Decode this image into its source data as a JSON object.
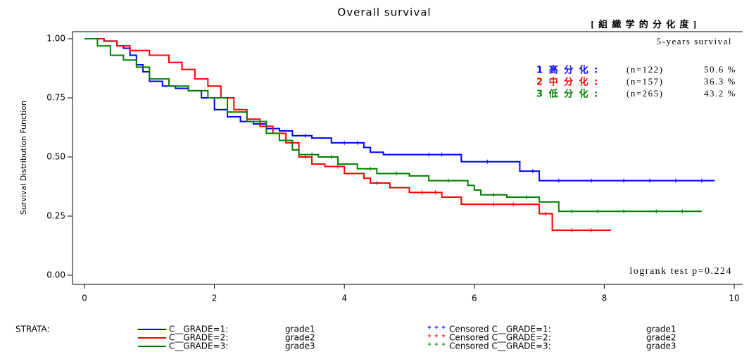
{
  "chart_data": {
    "type": "step",
    "title": "Overall survival",
    "ylabel": "Survival Distribution Function",
    "header": "[ 組 織 学 的 分 化 度 ]",
    "subheader": "5-years survival",
    "annotation": "logrank test p=0.224",
    "legend_title": "STRATA:",
    "xlim": [
      0,
      10
    ],
    "xticks": [
      0,
      2,
      4,
      6,
      8,
      10
    ],
    "ylim": [
      0,
      1
    ],
    "yticks": [
      {
        "value": 0,
        "label": "0.00"
      },
      {
        "value": 0.25,
        "label": "0.25"
      },
      {
        "value": 0.5,
        "label": "0.50"
      },
      {
        "value": 0.75,
        "label": "0.75"
      },
      {
        "value": 1,
        "label": "1.00"
      }
    ],
    "series": [
      {
        "name": "C__GRADE=1:",
        "group": "grade1",
        "censored_name": "Censored C__GRADE=1:",
        "color": "#0000ff",
        "label": "1 高 分 化 :",
        "n": "(n=122)",
        "rate": "50.6 %",
        "x": [
          0,
          0.3,
          0.5,
          0.6,
          0.7,
          0.8,
          0.9,
          1.0,
          1.2,
          1.4,
          1.6,
          1.8,
          2.0,
          2.2,
          2.4,
          2.6,
          2.8,
          3.0,
          3.2,
          3.5,
          3.8,
          4.3,
          4.4,
          4.6,
          5.8,
          6.7,
          7.0,
          9.7
        ],
        "y": [
          1,
          0.99,
          0.97,
          0.96,
          0.93,
          0.89,
          0.86,
          0.82,
          0.8,
          0.79,
          0.78,
          0.75,
          0.7,
          0.67,
          0.65,
          0.64,
          0.62,
          0.61,
          0.59,
          0.58,
          0.56,
          0.54,
          0.52,
          0.51,
          0.48,
          0.44,
          0.4,
          0.4
        ],
        "censored": [
          2.7,
          3.4,
          4.0,
          4.2,
          5.3,
          5.5,
          6.2,
          6.9,
          7.3,
          7.8,
          8.3,
          8.7,
          9.1,
          9.5
        ]
      },
      {
        "name": "C__GRADE=2:",
        "group": "grade2",
        "censored_name": "Censored C__GRADE=2:",
        "color": "#ff0000",
        "label": "2 中 分 化 :",
        "n": "(n=157)",
        "rate": "36.3 %",
        "x": [
          0,
          0.3,
          0.5,
          0.7,
          1.0,
          1.3,
          1.5,
          1.7,
          1.9,
          2.1,
          2.3,
          2.5,
          2.7,
          2.9,
          3.1,
          3.3,
          3.5,
          3.7,
          4.0,
          4.3,
          4.4,
          4.7,
          5.0,
          5.5,
          5.8,
          7.0,
          7.2,
          8.1
        ],
        "y": [
          1,
          0.99,
          0.97,
          0.95,
          0.93,
          0.9,
          0.87,
          0.83,
          0.8,
          0.75,
          0.7,
          0.66,
          0.63,
          0.6,
          0.56,
          0.5,
          0.47,
          0.46,
          0.43,
          0.41,
          0.39,
          0.37,
          0.35,
          0.33,
          0.3,
          0.26,
          0.19,
          0.19
        ],
        "censored": [
          3.4,
          3.9,
          4.5,
          5.2,
          5.4,
          6.3,
          6.6,
          7.1,
          7.5,
          7.8
        ]
      },
      {
        "name": "C__GRADE=3:",
        "group": "grade3",
        "censored_name": "Censored C__GRADE=3:",
        "color": "#008000",
        "label": "3 低 分 化 :",
        "n": "(n=265)",
        "rate": "43.2 %",
        "x": [
          0,
          0.2,
          0.4,
          0.6,
          0.8,
          1.0,
          1.3,
          1.6,
          1.9,
          2.2,
          2.5,
          2.8,
          3.0,
          3.2,
          3.3,
          3.6,
          3.9,
          4.2,
          4.5,
          5.0,
          5.3,
          5.9,
          6.0,
          6.1,
          6.5,
          7.0,
          7.3,
          9.5
        ],
        "y": [
          1,
          0.97,
          0.93,
          0.91,
          0.88,
          0.83,
          0.8,
          0.78,
          0.75,
          0.69,
          0.65,
          0.6,
          0.57,
          0.53,
          0.51,
          0.5,
          0.47,
          0.45,
          0.43,
          0.42,
          0.4,
          0.38,
          0.36,
          0.34,
          0.33,
          0.31,
          0.27,
          0.27
        ],
        "censored": [
          3.5,
          3.8,
          4.4,
          4.8,
          5.6,
          6.3,
          6.8,
          7.5,
          7.9,
          8.3,
          8.8,
          9.2
        ]
      }
    ]
  }
}
